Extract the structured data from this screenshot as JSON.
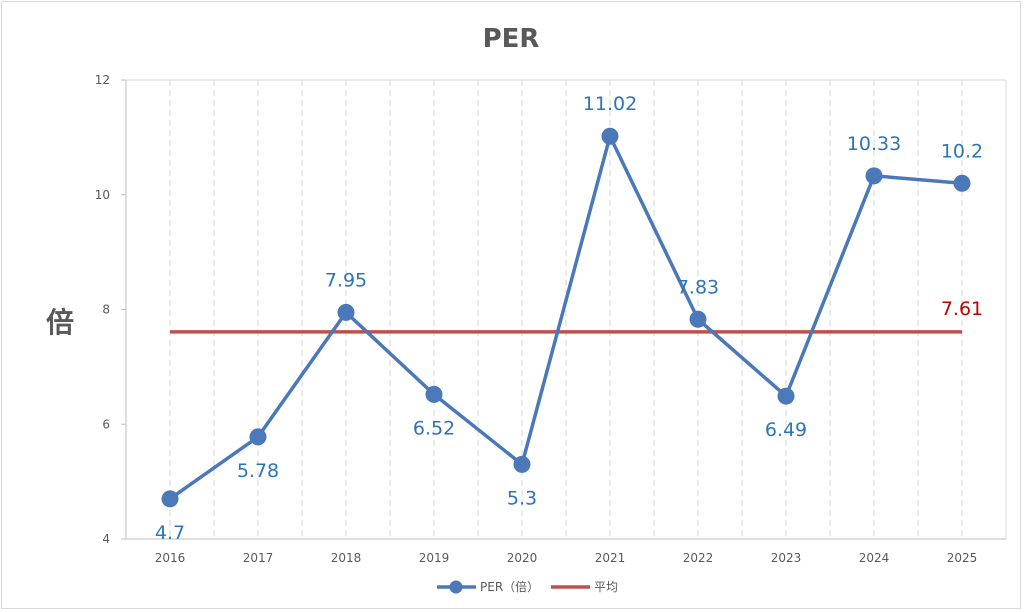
{
  "chart_data": {
    "type": "line",
    "title": "PER",
    "ylabel": "倍",
    "xlabel": "",
    "categories": [
      "2016",
      "2017",
      "2018",
      "2019",
      "2020",
      "2021",
      "2022",
      "2023",
      "2024",
      "2025"
    ],
    "ylim": [
      4,
      12
    ],
    "yticks": [
      "4",
      "6",
      "8",
      "10",
      "12"
    ],
    "grid": "vertical dashed",
    "legend_position": "bottom",
    "series": [
      {
        "name": "PER（倍）",
        "values": [
          4.7,
          5.78,
          7.95,
          6.52,
          5.3,
          11.02,
          7.83,
          6.49,
          10.33,
          10.2
        ],
        "labels": [
          "4.7",
          "5.78",
          "7.95",
          "6.52",
          "5.3",
          "11.02",
          "7.83",
          "6.49",
          "10.33",
          "10.2"
        ],
        "color": "#4a78b8",
        "marker": "circle"
      },
      {
        "name": "平均",
        "values": [
          7.61,
          7.61,
          7.61,
          7.61,
          7.61,
          7.61,
          7.61,
          7.61,
          7.61,
          7.61
        ],
        "label": "7.61",
        "color": "#c0504d"
      }
    ],
    "label_color": "#2e75b6",
    "avg_label_color": "#c00000"
  }
}
